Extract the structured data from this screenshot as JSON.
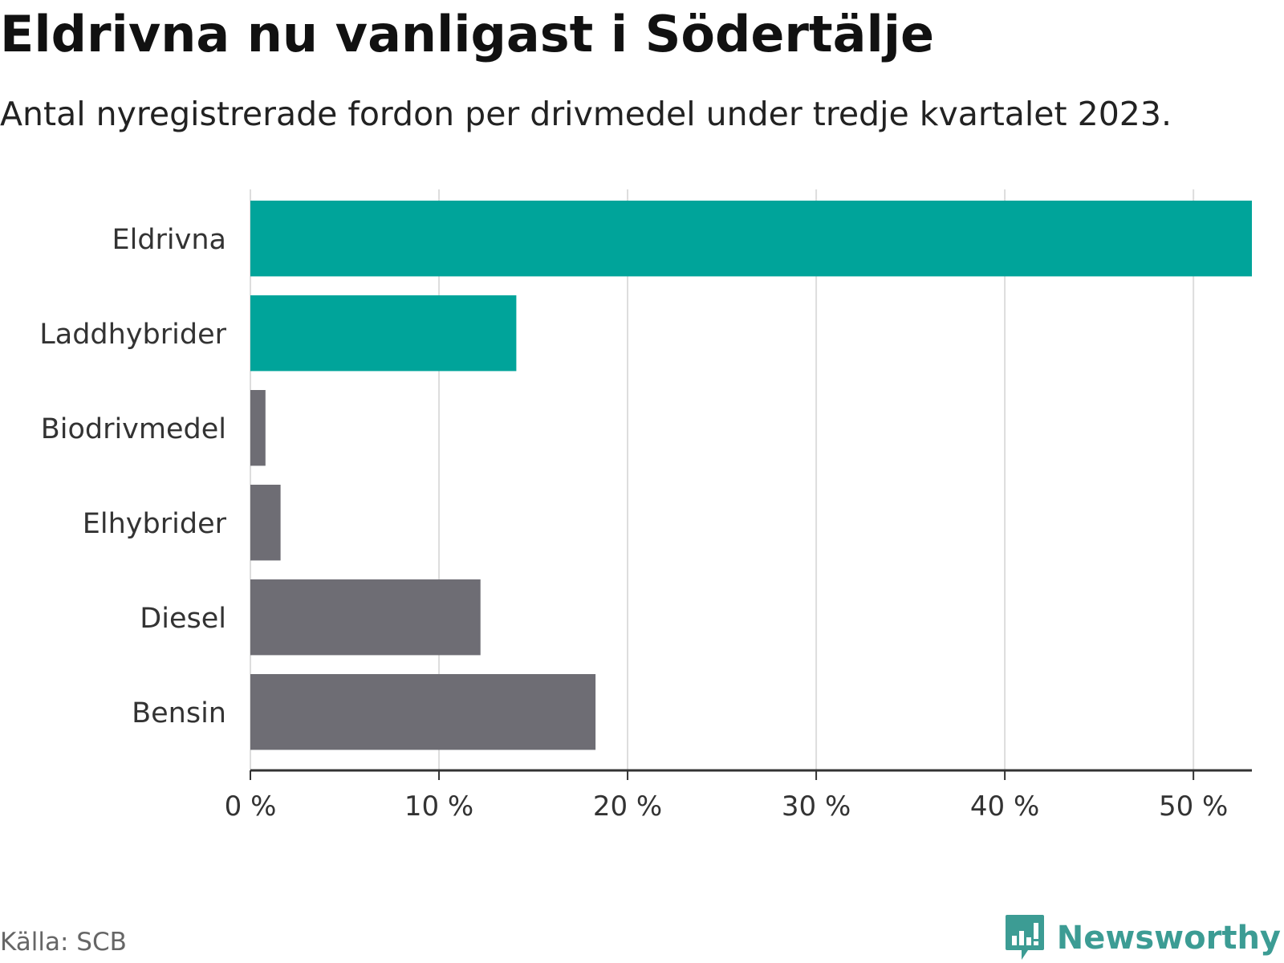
{
  "title": "Eldrivna nu vanligast i Södertälje",
  "subtitle": "Antal nyregistrerade fordon per drivmedel under tredje kvartalet 2023.",
  "source": "Källa: SCB",
  "brand": "Newsworthy",
  "colors": {
    "highlight": "#00a49a",
    "other": "#6e6d74",
    "grid": "#dddddd",
    "axis": "#333333",
    "brand": "#3c9c94"
  },
  "chart_data": {
    "type": "bar",
    "orientation": "horizontal",
    "categories": [
      "Eldrivna",
      "Laddhybrider",
      "Biodrivmedel",
      "Elhybrider",
      "Diesel",
      "Bensin"
    ],
    "values": [
      53.1,
      14.1,
      0.8,
      1.6,
      12.2,
      18.3
    ],
    "highlighted": [
      true,
      true,
      false,
      false,
      false,
      false
    ],
    "unit": "%",
    "xlim": [
      0,
      53.1
    ],
    "xticks": [
      0,
      10,
      20,
      30,
      40,
      50
    ],
    "xtick_labels": [
      "0 %",
      "10 %",
      "20 %",
      "30 %",
      "40 %",
      "50 %"
    ],
    "grid": true
  }
}
